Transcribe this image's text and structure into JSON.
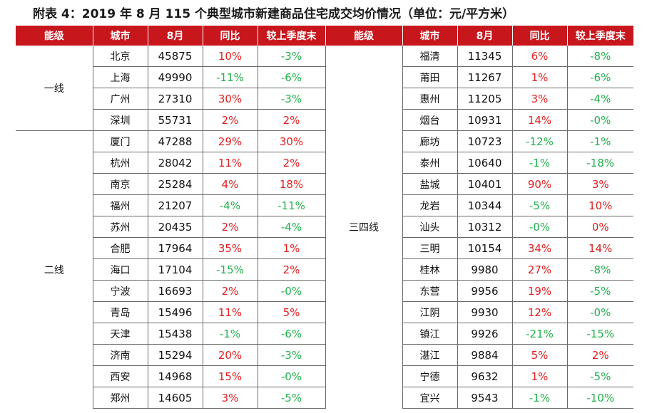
{
  "title": "附表 4：2019 年 8 月 115 个典型城市新建商品住宅成交均价情况（单位：元/平方米）",
  "headers": [
    "能级",
    "城市",
    "8月",
    "同比",
    "较上季度末",
    "能级",
    "城市",
    "8月",
    "同比",
    "较上季度末"
  ],
  "colors": {
    "header_bg": "#c8161d",
    "positive": "#e02020",
    "negative": "#22b14c"
  },
  "left": {
    "groups": [
      {
        "tier": "一线",
        "rows": [
          {
            "city": "北京",
            "price": "45875",
            "yoy": "10%",
            "qoq": "-3%"
          },
          {
            "city": "上海",
            "price": "49990",
            "yoy": "-11%",
            "qoq": "-6%"
          },
          {
            "city": "广州",
            "price": "27310",
            "yoy": "30%",
            "qoq": "-3%"
          },
          {
            "city": "深圳",
            "price": "55731",
            "yoy": "2%",
            "qoq": "2%"
          }
        ]
      },
      {
        "tier": "二线",
        "rows": [
          {
            "city": "厦门",
            "price": "47288",
            "yoy": "29%",
            "qoq": "30%"
          },
          {
            "city": "杭州",
            "price": "28042",
            "yoy": "11%",
            "qoq": "2%"
          },
          {
            "city": "南京",
            "price": "25284",
            "yoy": "4%",
            "qoq": "18%"
          },
          {
            "city": "福州",
            "price": "21207",
            "yoy": "-4%",
            "qoq": "-11%"
          },
          {
            "city": "苏州",
            "price": "20435",
            "yoy": "2%",
            "qoq": "-4%"
          },
          {
            "city": "合肥",
            "price": "17964",
            "yoy": "35%",
            "qoq": "1%"
          },
          {
            "city": "海口",
            "price": "17104",
            "yoy": "-15%",
            "qoq": "2%"
          },
          {
            "city": "宁波",
            "price": "16693",
            "yoy": "2%",
            "qoq": "-0%"
          },
          {
            "city": "青岛",
            "price": "15496",
            "yoy": "11%",
            "qoq": "5%"
          },
          {
            "city": "天津",
            "price": "15438",
            "yoy": "-1%",
            "qoq": "-6%"
          },
          {
            "city": "济南",
            "price": "15294",
            "yoy": "20%",
            "qoq": "-3%"
          },
          {
            "city": "西安",
            "price": "14968",
            "yoy": "15%",
            "qoq": "-0%"
          },
          {
            "city": "郑州",
            "price": "14605",
            "yoy": "3%",
            "qoq": "-5%"
          }
        ]
      }
    ]
  },
  "right": {
    "tier": "三四线",
    "rows": [
      {
        "city": "福清",
        "price": "11345",
        "yoy": "6%",
        "qoq": "-8%"
      },
      {
        "city": "莆田",
        "price": "11267",
        "yoy": "1%",
        "qoq": "-6%"
      },
      {
        "city": "惠州",
        "price": "11205",
        "yoy": "3%",
        "qoq": "-4%"
      },
      {
        "city": "烟台",
        "price": "10931",
        "yoy": "14%",
        "qoq": "-0%"
      },
      {
        "city": "廊坊",
        "price": "10723",
        "yoy": "-12%",
        "qoq": "-1%"
      },
      {
        "city": "泰州",
        "price": "10640",
        "yoy": "-1%",
        "qoq": "-18%"
      },
      {
        "city": "盐城",
        "price": "10401",
        "yoy": "90%",
        "qoq": "3%"
      },
      {
        "city": "龙岩",
        "price": "10344",
        "yoy": "-5%",
        "qoq": "10%"
      },
      {
        "city": "汕头",
        "price": "10312",
        "yoy": "-0%",
        "qoq": "0%"
      },
      {
        "city": "三明",
        "price": "10154",
        "yoy": "34%",
        "qoq": "14%"
      },
      {
        "city": "桂林",
        "price": "9980",
        "yoy": "27%",
        "qoq": "-8%"
      },
      {
        "city": "东营",
        "price": "9956",
        "yoy": "19%",
        "qoq": "-5%"
      },
      {
        "city": "江阴",
        "price": "9930",
        "yoy": "12%",
        "qoq": "-0%"
      },
      {
        "city": "镇江",
        "price": "9926",
        "yoy": "-21%",
        "qoq": "-15%"
      },
      {
        "city": "湛江",
        "price": "9884",
        "yoy": "5%",
        "qoq": "2%"
      },
      {
        "city": "宁德",
        "price": "9632",
        "yoy": "1%",
        "qoq": "-5%"
      },
      {
        "city": "宜兴",
        "price": "9543",
        "yoy": "-1%",
        "qoq": "-10%"
      }
    ]
  }
}
